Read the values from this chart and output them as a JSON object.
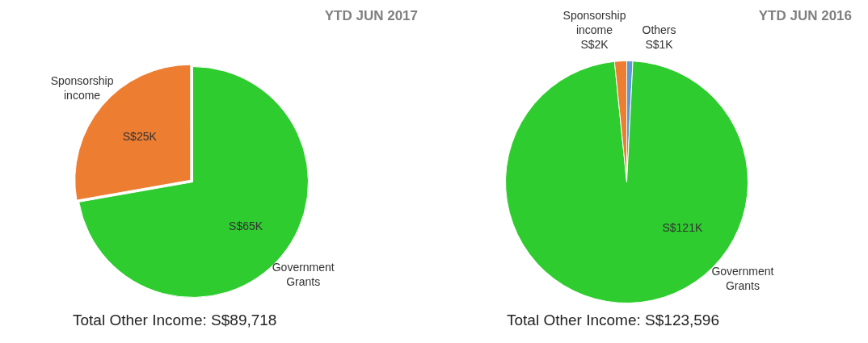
{
  "chart_data": [
    {
      "type": "pie",
      "title": "YTD JUN 2017",
      "categories": [
        "Government Grants",
        "Sponsorship income"
      ],
      "values": [
        65000,
        25000
      ],
      "value_labels": [
        "S$65K",
        "S$25K"
      ],
      "colors": [
        "#2ecc2e",
        "#ed7d31"
      ],
      "legend": false,
      "annotations": [
        "Total Other Income:  S$89,718"
      ]
    },
    {
      "type": "pie",
      "title": "YTD JUN 2016",
      "categories": [
        "Others",
        "Government Grants",
        "Sponsorship income"
      ],
      "values": [
        1000,
        121000,
        2000
      ],
      "value_labels": [
        "S$1K",
        "S$121K",
        "S$2K"
      ],
      "colors": [
        "#5b9bd5",
        "#2ecc2e",
        "#ed7d31"
      ],
      "legend": false,
      "annotations": [
        "Total Other Income:  S$123,596"
      ]
    }
  ]
}
